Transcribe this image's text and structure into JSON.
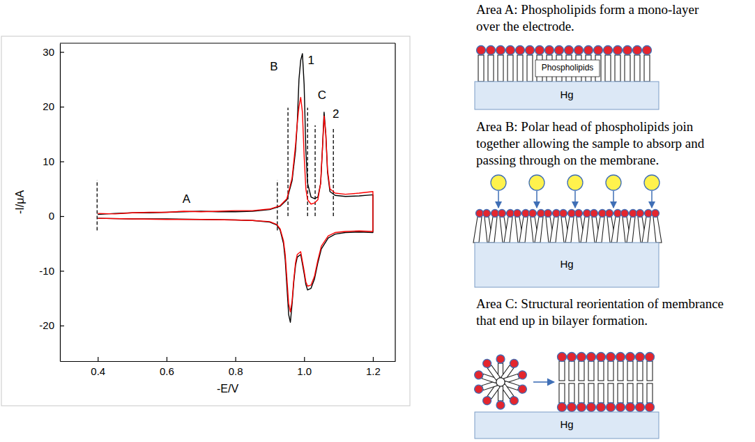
{
  "chart_data": {
    "type": "line",
    "xlabel": "-E/V",
    "ylabel": "-I/μA",
    "xlim": [
      0.29,
      1.265
    ],
    "ylim": [
      -26.5,
      31.6
    ],
    "xticks": [
      0.4,
      0.6,
      0.8,
      {
        "value": 1.0,
        "label": "1.0"
      },
      1.2
    ],
    "yticks": [
      -20,
      -10,
      0,
      10,
      20,
      30
    ],
    "x": [
      0.4,
      0.45,
      0.5,
      0.55,
      0.6,
      0.65,
      0.7,
      0.75,
      0.8,
      0.85,
      0.9,
      0.93,
      0.95,
      0.965,
      0.975,
      0.98,
      0.985,
      0.99,
      0.995,
      1.0,
      1.005,
      1.01,
      1.02,
      1.03,
      1.04,
      1.048,
      1.053,
      1.058,
      1.063,
      1.068,
      1.075,
      1.09,
      1.12,
      1.16,
      1.2,
      1.2,
      1.16,
      1.12,
      1.09,
      1.07,
      1.05,
      1.04,
      1.03,
      1.02,
      1.01,
      1.005,
      1.0,
      0.99,
      0.98,
      0.975,
      0.97,
      0.965,
      0.96,
      0.955,
      0.95,
      0.945,
      0.94,
      0.93,
      0.92,
      0.9,
      0.85,
      0.8,
      0.7,
      0.6,
      0.5,
      0.4
    ],
    "series": [
      {
        "color": "#000000",
        "values": [
          0.3,
          0.5,
          0.6,
          0.6,
          0.7,
          0.8,
          0.9,
          0.8,
          0.8,
          0.9,
          1.2,
          1.8,
          3.0,
          6.5,
          12,
          17,
          25,
          28.5,
          29.7,
          24,
          12,
          6,
          3.5,
          3.2,
          3.5,
          6,
          12,
          19,
          15,
          8,
          4.5,
          3.8,
          3.6,
          3.7,
          3.9,
          -3,
          -2.9,
          -3,
          -3.3,
          -4,
          -6,
          -8.5,
          -11.5,
          -13.2,
          -13.5,
          -12.5,
          -10.5,
          -7,
          -7.5,
          -9,
          -12,
          -16,
          -19.4,
          -18,
          -13,
          -8,
          -5,
          -2.5,
          -1.6,
          -1.1,
          -0.8,
          -0.7,
          -0.6,
          -0.5,
          -0.5,
          -0.4
        ]
      },
      {
        "color": "#ff0000",
        "values": [
          0.5,
          0.4,
          0.6,
          0.7,
          0.7,
          0.9,
          0.8,
          0.9,
          1.0,
          1.0,
          1.3,
          1.9,
          3.2,
          7,
          13,
          17,
          20,
          21.7,
          19,
          11,
          5,
          3,
          2.2,
          2.4,
          3,
          6,
          12,
          18.3,
          15,
          8.5,
          5,
          4.2,
          4,
          4.2,
          4.5,
          -2.8,
          -2.7,
          -2.8,
          -3,
          -3.6,
          -5.5,
          -8,
          -11,
          -12.6,
          -12.8,
          -12,
          -10,
          -6.5,
          -7,
          -8.5,
          -11.5,
          -15.5,
          -17.5,
          -16,
          -11.5,
          -7,
          -4.5,
          -2.3,
          -1.5,
          -1,
          -0.8,
          -0.7,
          -0.6,
          -0.6,
          -0.5,
          -0.4
        ]
      }
    ],
    "annotations": [
      {
        "text": "A",
        "x": 0.658,
        "y": 3.0
      },
      {
        "text": "B",
        "x": 0.912,
        "y": 27.2
      },
      {
        "text": "1",
        "x": 1.02,
        "y": 28.3
      },
      {
        "text": "C",
        "x": 1.052,
        "y": 22.0
      },
      {
        "text": "2",
        "x": 1.092,
        "y": 18.6
      }
    ],
    "region_lines": [
      {
        "x": 0.398,
        "y": [
          -2.6,
          6.6
        ]
      },
      {
        "x": 0.922,
        "y": [
          -2.6,
          6.6
        ]
      },
      {
        "x": 0.953,
        "y": [
          0,
          19.8
        ]
      },
      {
        "x": 1.01,
        "y": [
          0,
          19.8
        ]
      },
      {
        "x": 1.032,
        "y": [
          0,
          16.6
        ]
      },
      {
        "x": 1.085,
        "y": [
          0,
          16.0
        ]
      }
    ]
  },
  "diagram": {
    "panels": [
      {
        "text": [
          "Area A: Phospholipids form a mono-layer",
          "over the electrode."
        ],
        "inner_label": "Phospholipids",
        "substrate": "Hg"
      },
      {
        "text": [
          "Area B: Polar head of phospholipids join",
          "together allowing the sample to absorp and",
          "passing through on the membrane."
        ],
        "substrate": "Hg"
      },
      {
        "text": [
          "Area C: Structural reorientation of membrance",
          "that end up in bilayer formation."
        ],
        "substrate": "Hg"
      }
    ]
  }
}
